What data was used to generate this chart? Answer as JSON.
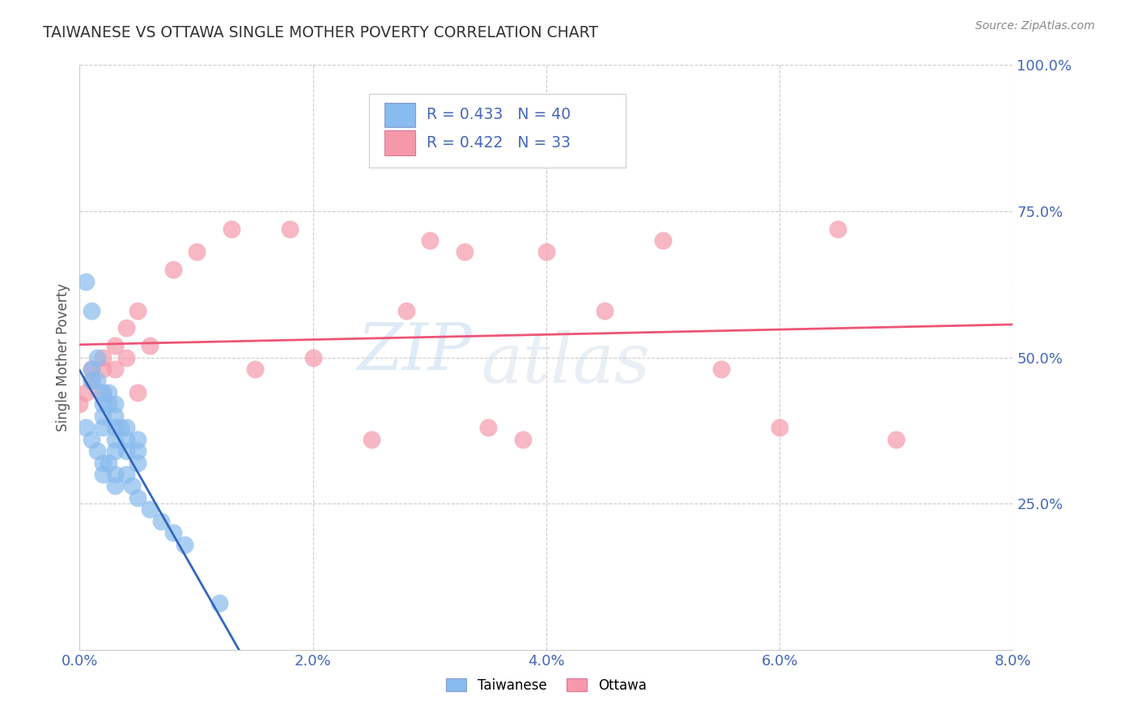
{
  "title": "TAIWANESE VS OTTAWA SINGLE MOTHER POVERTY CORRELATION CHART",
  "source": "Source: ZipAtlas.com",
  "ylabel_label": "Single Mother Poverty",
  "xlim": [
    0.0,
    0.08
  ],
  "ylim": [
    0.0,
    1.0
  ],
  "yticks": [
    0.0,
    0.25,
    0.5,
    0.75,
    1.0
  ],
  "xticks": [
    0.0,
    0.02,
    0.04,
    0.06,
    0.08
  ],
  "watermark_zip": "ZIP",
  "watermark_atlas": "atlas",
  "background_color": "#ffffff",
  "grid_color": "#cccccc",
  "title_color": "#333333",
  "axis_label_color": "#555555",
  "tick_label_color": "#4466bb",
  "taiwanese_x": [
    0.0005,
    0.001,
    0.001,
    0.001,
    0.0015,
    0.0015,
    0.002,
    0.002,
    0.002,
    0.002,
    0.0025,
    0.0025,
    0.003,
    0.003,
    0.003,
    0.003,
    0.003,
    0.0035,
    0.004,
    0.004,
    0.004,
    0.005,
    0.005,
    0.005,
    0.0005,
    0.001,
    0.0015,
    0.002,
    0.002,
    0.0025,
    0.003,
    0.003,
    0.004,
    0.0045,
    0.005,
    0.006,
    0.007,
    0.008,
    0.009,
    0.012
  ],
  "taiwanese_y": [
    0.63,
    0.58,
    0.48,
    0.46,
    0.5,
    0.46,
    0.44,
    0.42,
    0.4,
    0.38,
    0.44,
    0.42,
    0.42,
    0.4,
    0.38,
    0.36,
    0.34,
    0.38,
    0.38,
    0.36,
    0.34,
    0.36,
    0.34,
    0.32,
    0.38,
    0.36,
    0.34,
    0.32,
    0.3,
    0.32,
    0.3,
    0.28,
    0.3,
    0.28,
    0.26,
    0.24,
    0.22,
    0.2,
    0.18,
    0.08
  ],
  "ottawa_x": [
    0.0,
    0.0005,
    0.001,
    0.001,
    0.002,
    0.002,
    0.002,
    0.003,
    0.003,
    0.004,
    0.004,
    0.005,
    0.005,
    0.006,
    0.008,
    0.01,
    0.013,
    0.015,
    0.018,
    0.02,
    0.025,
    0.028,
    0.03,
    0.033,
    0.035,
    0.038,
    0.04,
    0.045,
    0.05,
    0.055,
    0.06,
    0.065,
    0.07
  ],
  "ottawa_y": [
    0.42,
    0.44,
    0.48,
    0.46,
    0.5,
    0.48,
    0.44,
    0.52,
    0.48,
    0.55,
    0.5,
    0.58,
    0.44,
    0.52,
    0.65,
    0.68,
    0.72,
    0.48,
    0.72,
    0.5,
    0.36,
    0.58,
    0.7,
    0.68,
    0.38,
    0.36,
    0.68,
    0.58,
    0.7,
    0.48,
    0.38,
    0.72,
    0.36
  ],
  "taiwanese_R": 0.433,
  "taiwanese_N": 40,
  "ottawa_R": 0.422,
  "ottawa_N": 33,
  "taiwanese_color": "#88bbee",
  "ottawa_color": "#f599aa",
  "taiwanese_line_color": "#3366bb",
  "ottawa_line_color": "#ee5577",
  "dashed_line_color": "#99bbdd"
}
